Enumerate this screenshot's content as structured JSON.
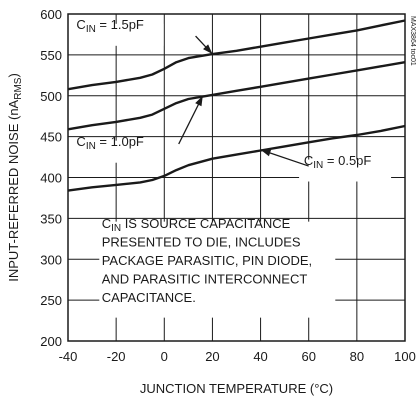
{
  "chart_data": {
    "type": "line",
    "xlabel": "JUNCTION TEMPERATURE (°C)",
    "ylabel_main": "INPUT-REFERRED NOISE (nA",
    "ylabel_sub": "RMS",
    "ylabel_end": ")",
    "xlim": [
      -40,
      100
    ],
    "ylim": [
      200,
      600
    ],
    "xticks": [
      -40,
      -20,
      0,
      20,
      40,
      60,
      80,
      100
    ],
    "yticks": [
      200,
      250,
      300,
      350,
      400,
      450,
      500,
      550,
      600
    ],
    "grid": true,
    "series": [
      {
        "name": "1.5pF",
        "points": [
          [
            -40,
            508
          ],
          [
            -30,
            513
          ],
          [
            -20,
            517
          ],
          [
            -10,
            522
          ],
          [
            -5,
            526
          ],
          [
            0,
            533
          ],
          [
            5,
            541
          ],
          [
            10,
            546
          ],
          [
            20,
            551
          ],
          [
            30,
            555
          ],
          [
            40,
            560
          ],
          [
            50,
            565
          ],
          [
            60,
            570
          ],
          [
            70,
            575
          ],
          [
            80,
            580
          ],
          [
            90,
            586
          ],
          [
            100,
            592
          ]
        ]
      },
      {
        "name": "1.0pF",
        "points": [
          [
            -40,
            459
          ],
          [
            -30,
            464
          ],
          [
            -20,
            468
          ],
          [
            -10,
            473
          ],
          [
            -5,
            477
          ],
          [
            0,
            484
          ],
          [
            5,
            491
          ],
          [
            10,
            496
          ],
          [
            20,
            501
          ],
          [
            30,
            506
          ],
          [
            40,
            511
          ],
          [
            50,
            516
          ],
          [
            60,
            521
          ],
          [
            70,
            526
          ],
          [
            80,
            531
          ],
          [
            90,
            536
          ],
          [
            100,
            541
          ]
        ]
      },
      {
        "name": "0.5pF",
        "points": [
          [
            -40,
            384
          ],
          [
            -30,
            388
          ],
          [
            -20,
            391
          ],
          [
            -10,
            394
          ],
          [
            -5,
            397
          ],
          [
            0,
            402
          ],
          [
            5,
            409
          ],
          [
            10,
            415
          ],
          [
            20,
            423
          ],
          [
            30,
            428
          ],
          [
            40,
            433
          ],
          [
            50,
            438
          ],
          [
            60,
            443
          ],
          [
            70,
            448
          ],
          [
            80,
            452
          ],
          [
            90,
            457
          ],
          [
            100,
            463
          ]
        ]
      }
    ],
    "annotations": [
      {
        "main": "C",
        "sub": "IN",
        "rest": " = 1.5pF"
      },
      {
        "main": "C",
        "sub": "IN",
        "rest": " = 1.0pF"
      },
      {
        "main": "C",
        "sub": "IN",
        "rest": " = 0.5pF"
      }
    ],
    "note": {
      "line1_main": "C",
      "line1_sub": "IN",
      "line1_rest": " IS SOURCE CAPACITANCE",
      "lines": [
        "PRESENTED TO DIE, INCLUDES",
        "PACKAGE PARASITIC, PIN DIODE,",
        "AND PARASITIC INTERCONNECT",
        "CAPACITANCE."
      ]
    },
    "figure_code": "MAX3864 toc01",
    "colors": {
      "line": "#1a1a1a",
      "grid": "#1a1a1a",
      "background": "#ffffff"
    }
  }
}
